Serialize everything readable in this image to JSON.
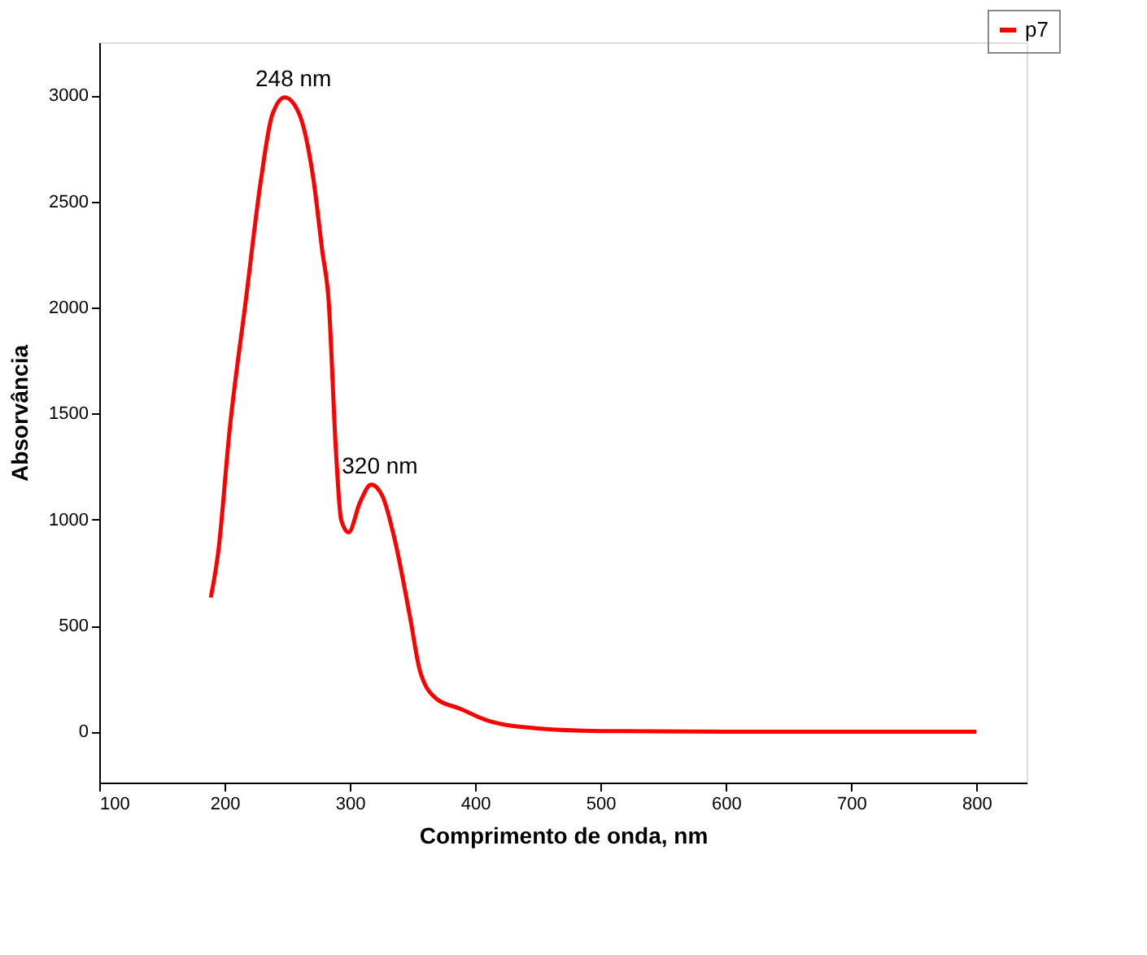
{
  "chart_data": {
    "type": "line",
    "xlabel": "Comprimento de onda, nm",
    "ylabel": "Absorvância",
    "xlim": [
      100,
      840
    ],
    "xticks": [
      100,
      200,
      300,
      400,
      500,
      600,
      700,
      800
    ],
    "ylim": [
      -240,
      3250
    ],
    "yticks": [
      0,
      500,
      1000,
      1500,
      2000,
      2500,
      3000
    ],
    "grid": false,
    "legend": "top right",
    "marker": "none",
    "line_style": "solid",
    "annotations": [
      {
        "text": "248 nm",
        "x": 248,
        "y": 2990
      },
      {
        "text": "320 nm",
        "x": 317,
        "y": 1165
      }
    ],
    "series": [
      {
        "name": "p7",
        "color": "#ff0000",
        "x": [
          189,
          195,
          204,
          217,
          229,
          238,
          248,
          259,
          271,
          278,
          283,
          289,
          293,
          299,
          308,
          317,
          326,
          336,
          348,
          356,
          369,
          388,
          409,
          450,
          500,
          600,
          700,
          800
        ],
        "values": [
          632,
          848,
          1420,
          2035,
          2600,
          2907,
          2990,
          2920,
          2600,
          2265,
          2035,
          1310,
          1000,
          940,
          1080,
          1165,
          1110,
          900,
          540,
          285,
          155,
          108,
          54,
          15,
          3,
          0,
          0,
          0
        ]
      }
    ]
  }
}
